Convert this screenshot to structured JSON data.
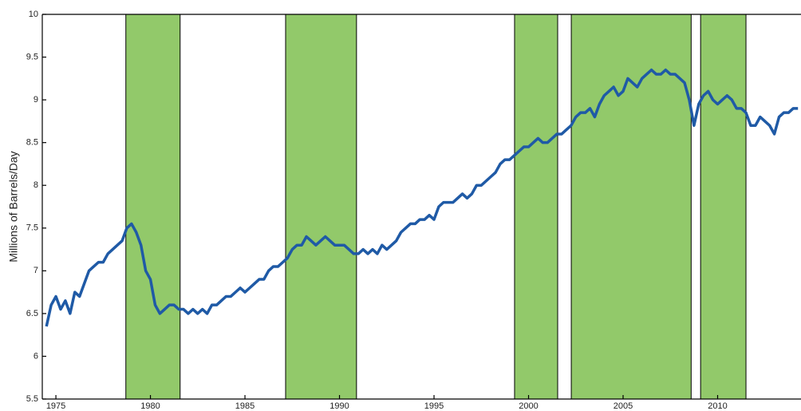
{
  "chart_data": {
    "type": "line",
    "y_label": "Millions of Barrels/Day",
    "xlim": [
      1974.28,
      2014.41
    ],
    "xticks": [
      1975,
      1980,
      1985,
      1990,
      1995,
      2000,
      2005,
      2010
    ],
    "ylim": [
      5.5,
      10
    ],
    "yticks": [
      5.5,
      6,
      6.5,
      7,
      7.5,
      8,
      8.5,
      9,
      9.5,
      10
    ],
    "shaded_regions": [
      [
        1978.7,
        1981.57
      ],
      [
        1987.15,
        1990.9
      ],
      [
        1999.26,
        2001.54
      ],
      [
        2002.26,
        2008.6
      ],
      [
        2009.1,
        2011.5
      ]
    ],
    "shade_color": "#92c96a",
    "series": [
      {
        "color": "#1f5aa6",
        "x": [
          1974.5,
          1974.75,
          1975,
          1975.25,
          1975.5,
          1975.75,
          1976,
          1976.25,
          1976.5,
          1976.75,
          1977,
          1977.25,
          1977.5,
          1977.75,
          1978,
          1978.25,
          1978.5,
          1978.75,
          1979,
          1979.25,
          1979.5,
          1979.75,
          1980,
          1980.25,
          1980.5,
          1980.75,
          1981,
          1981.25,
          1981.5,
          1981.75,
          1982,
          1982.25,
          1982.5,
          1982.75,
          1983,
          1983.25,
          1983.5,
          1983.75,
          1984,
          1984.25,
          1984.5,
          1984.75,
          1985,
          1985.25,
          1985.5,
          1985.75,
          1986,
          1986.25,
          1986.5,
          1986.75,
          1987,
          1987.25,
          1987.5,
          1987.75,
          1988,
          1988.25,
          1988.5,
          1988.75,
          1989,
          1989.25,
          1989.5,
          1989.75,
          1990,
          1990.25,
          1990.5,
          1990.75,
          1991,
          1991.25,
          1991.5,
          1991.75,
          1992,
          1992.25,
          1992.5,
          1992.75,
          1993,
          1993.25,
          1993.5,
          1993.75,
          1994,
          1994.25,
          1994.5,
          1994.75,
          1995,
          1995.25,
          1995.5,
          1995.75,
          1996,
          1996.25,
          1996.5,
          1996.75,
          1997,
          1997.25,
          1997.5,
          1997.75,
          1998,
          1998.25,
          1998.5,
          1998.75,
          1999,
          1999.25,
          1999.5,
          1999.75,
          2000,
          2000.25,
          2000.5,
          2000.75,
          2001,
          2001.25,
          2001.5,
          2001.75,
          2002,
          2002.25,
          2002.5,
          2002.75,
          2003,
          2003.25,
          2003.5,
          2003.75,
          2004,
          2004.25,
          2004.5,
          2004.75,
          2005,
          2005.25,
          2005.5,
          2005.75,
          2006,
          2006.25,
          2006.5,
          2006.75,
          2007,
          2007.25,
          2007.5,
          2007.75,
          2008,
          2008.25,
          2008.5,
          2008.75,
          2009,
          2009.25,
          2009.5,
          2009.75,
          2010,
          2010.25,
          2010.5,
          2010.75,
          2011,
          2011.25,
          2011.5,
          2011.75,
          2012,
          2012.25,
          2012.5,
          2012.75,
          2013,
          2013.25,
          2013.5,
          2013.75,
          2014,
          2014.25
        ],
        "values": [
          6.35,
          6.6,
          6.7,
          6.55,
          6.65,
          6.5,
          6.75,
          6.7,
          6.85,
          7.0,
          7.05,
          7.1,
          7.1,
          7.2,
          7.25,
          7.3,
          7.35,
          7.5,
          7.55,
          7.45,
          7.3,
          7.0,
          6.9,
          6.6,
          6.5,
          6.55,
          6.6,
          6.6,
          6.55,
          6.55,
          6.5,
          6.55,
          6.5,
          6.55,
          6.5,
          6.6,
          6.6,
          6.65,
          6.7,
          6.7,
          6.75,
          6.8,
          6.75,
          6.8,
          6.85,
          6.9,
          6.9,
          7.0,
          7.05,
          7.05,
          7.1,
          7.15,
          7.25,
          7.3,
          7.3,
          7.4,
          7.35,
          7.3,
          7.35,
          7.4,
          7.35,
          7.3,
          7.3,
          7.3,
          7.25,
          7.2,
          7.2,
          7.25,
          7.2,
          7.25,
          7.2,
          7.3,
          7.25,
          7.3,
          7.35,
          7.45,
          7.5,
          7.55,
          7.55,
          7.6,
          7.6,
          7.65,
          7.6,
          7.75,
          7.8,
          7.8,
          7.8,
          7.85,
          7.9,
          7.85,
          7.9,
          8.0,
          8.0,
          8.05,
          8.1,
          8.15,
          8.25,
          8.3,
          8.3,
          8.35,
          8.4,
          8.45,
          8.45,
          8.5,
          8.55,
          8.5,
          8.5,
          8.55,
          8.6,
          8.6,
          8.65,
          8.7,
          8.8,
          8.85,
          8.85,
          8.9,
          8.8,
          8.95,
          9.05,
          9.1,
          9.15,
          9.05,
          9.1,
          9.25,
          9.2,
          9.15,
          9.25,
          9.3,
          9.35,
          9.3,
          9.3,
          9.35,
          9.3,
          9.3,
          9.25,
          9.2,
          9.0,
          8.7,
          8.95,
          9.05,
          9.1,
          9.0,
          8.95,
          9.0,
          9.05,
          9.0,
          8.9,
          8.9,
          8.85,
          8.7,
          8.7,
          8.8,
          8.75,
          8.7,
          8.6,
          8.8,
          8.85,
          8.85,
          8.9,
          8.9
        ]
      }
    ]
  }
}
